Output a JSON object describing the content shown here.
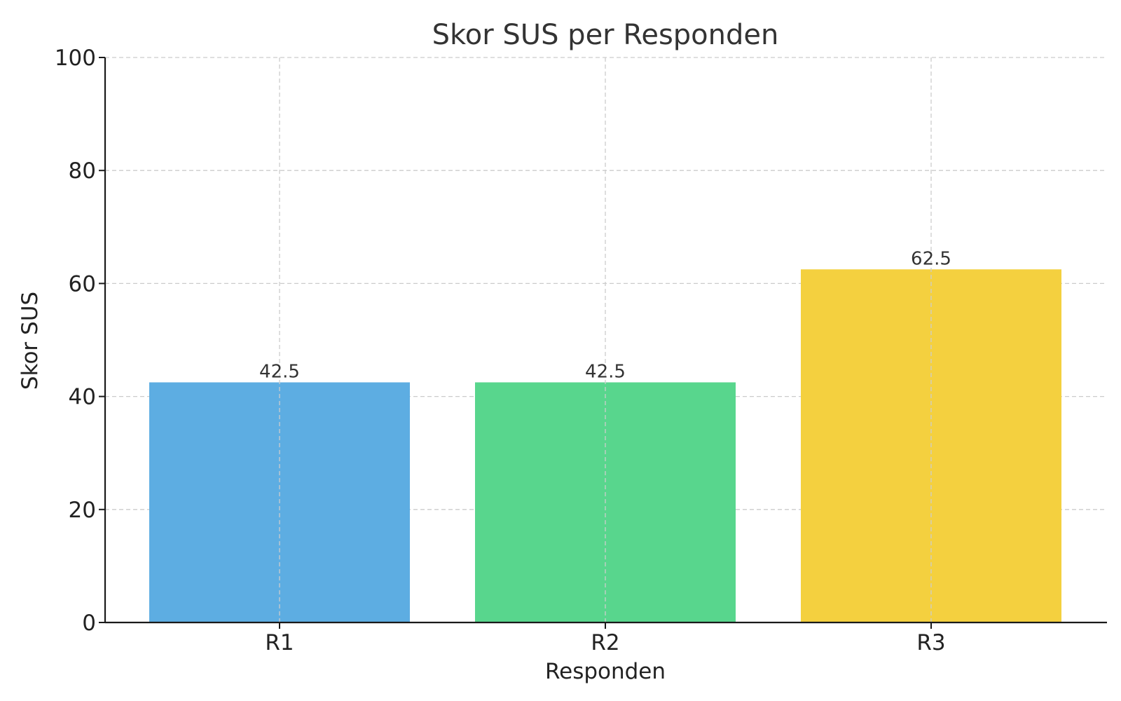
{
  "chart_data": {
    "type": "bar",
    "title": "Skor SUS per Responden",
    "xlabel": "Responden",
    "ylabel": "Skor SUS",
    "categories": [
      "R1",
      "R2",
      "R3"
    ],
    "values": [
      42.5,
      42.5,
      62.5
    ],
    "value_labels": [
      "42.5",
      "42.5",
      "62.5"
    ],
    "colors": [
      "#5DADE2",
      "#58D68D",
      "#F4D03F"
    ],
    "ylim": [
      0,
      100
    ],
    "yticks": [
      0,
      20,
      40,
      60,
      80,
      100
    ],
    "ytick_labels": [
      "0",
      "20",
      "40",
      "60",
      "80",
      "100"
    ],
    "grid": true,
    "legend": false
  }
}
